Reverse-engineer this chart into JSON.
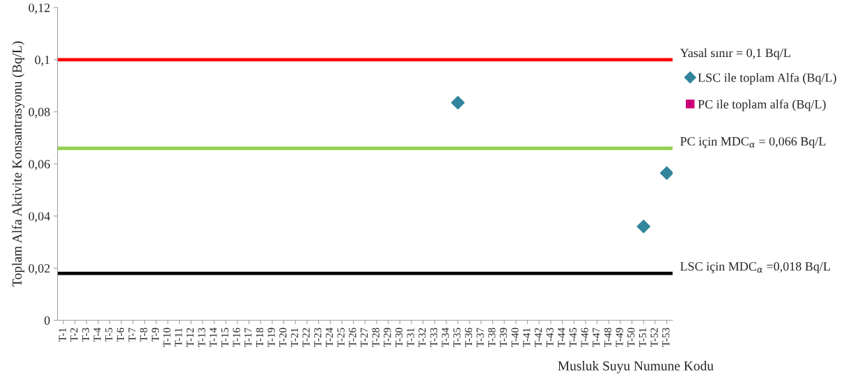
{
  "chart_data": {
    "type": "scatter",
    "xlabel": "Musluk Suyu Numune Kodu",
    "ylabel": "Toplam Alfa Aktivite Konsantrasyonu (Bq/L)",
    "categories": [
      "T-1",
      "T-2",
      "T-3",
      "T-4",
      "T-5",
      "T-6",
      "T-7",
      "T-8",
      "T-9",
      "T-10",
      "T-11",
      "T-12",
      "T-13",
      "T-14",
      "T-15",
      "T-16",
      "T-17",
      "T-18",
      "T-19",
      "T-20",
      "T-21",
      "T-22",
      "T-23",
      "T-24",
      "T-25",
      "T-26",
      "T-27",
      "T-28",
      "T-29",
      "T-30",
      "T-31",
      "T-32",
      "T-33",
      "T-34",
      "T-35",
      "T-36",
      "T-37",
      "T-38",
      "T-39",
      "T-40",
      "T-41",
      "T-42",
      "T-43",
      "T-44",
      "T-45",
      "T-46",
      "T-47",
      "T-48",
      "T-49",
      "T-50",
      "T-51",
      "T-52",
      "T-53"
    ],
    "series": [
      {
        "name": "LSC ile toplam Alfa (Bq/L)",
        "color": "#31859c",
        "marker": "diamond",
        "values": [
          null,
          null,
          null,
          null,
          null,
          null,
          null,
          null,
          null,
          null,
          null,
          null,
          null,
          null,
          null,
          null,
          null,
          null,
          null,
          null,
          null,
          null,
          null,
          null,
          null,
          null,
          null,
          null,
          null,
          null,
          null,
          null,
          null,
          null,
          0.0835,
          null,
          null,
          null,
          null,
          null,
          null,
          null,
          null,
          null,
          null,
          null,
          null,
          null,
          null,
          null,
          0.036,
          null,
          0.0565
        ]
      },
      {
        "name": "PC ile toplam alfa (Bq/L)",
        "color": "#cc0077",
        "marker": "square",
        "values": [
          null,
          null,
          null,
          null,
          null,
          null,
          null,
          null,
          null,
          null,
          null,
          null,
          null,
          null,
          null,
          null,
          null,
          null,
          null,
          null,
          null,
          null,
          null,
          null,
          null,
          null,
          null,
          null,
          null,
          null,
          null,
          null,
          null,
          null,
          null,
          null,
          null,
          null,
          null,
          null,
          null,
          null,
          null,
          null,
          null,
          null,
          null,
          null,
          null,
          null,
          null,
          null,
          null
        ]
      }
    ],
    "ylim": [
      0,
      0.12
    ],
    "yticks": [
      {
        "value": 0,
        "label": "0"
      },
      {
        "value": 0.02,
        "label": "0,02"
      },
      {
        "value": 0.04,
        "label": "0,04"
      },
      {
        "value": 0.06,
        "label": "0,06"
      },
      {
        "value": 0.08,
        "label": "0,08"
      },
      {
        "value": 0.1,
        "label": "0,1"
      },
      {
        "value": 0.12,
        "label": "0,12"
      }
    ],
    "ref_lines": [
      {
        "axis": "y",
        "value": 0.1,
        "label": "Yasal sınır = 0,1 Bq/L",
        "color": "#ff0000"
      },
      {
        "axis": "y",
        "value": 0.066,
        "label": "PC için MDC$_{α}$ = 0,066 Bq/L",
        "color": "#92d050"
      },
      {
        "axis": "y",
        "value": 0.018,
        "label": "LSC için MDC$_{α}$ =0,018 Bq/L",
        "color": "#000000"
      }
    ],
    "grid": false,
    "legend": "right"
  }
}
